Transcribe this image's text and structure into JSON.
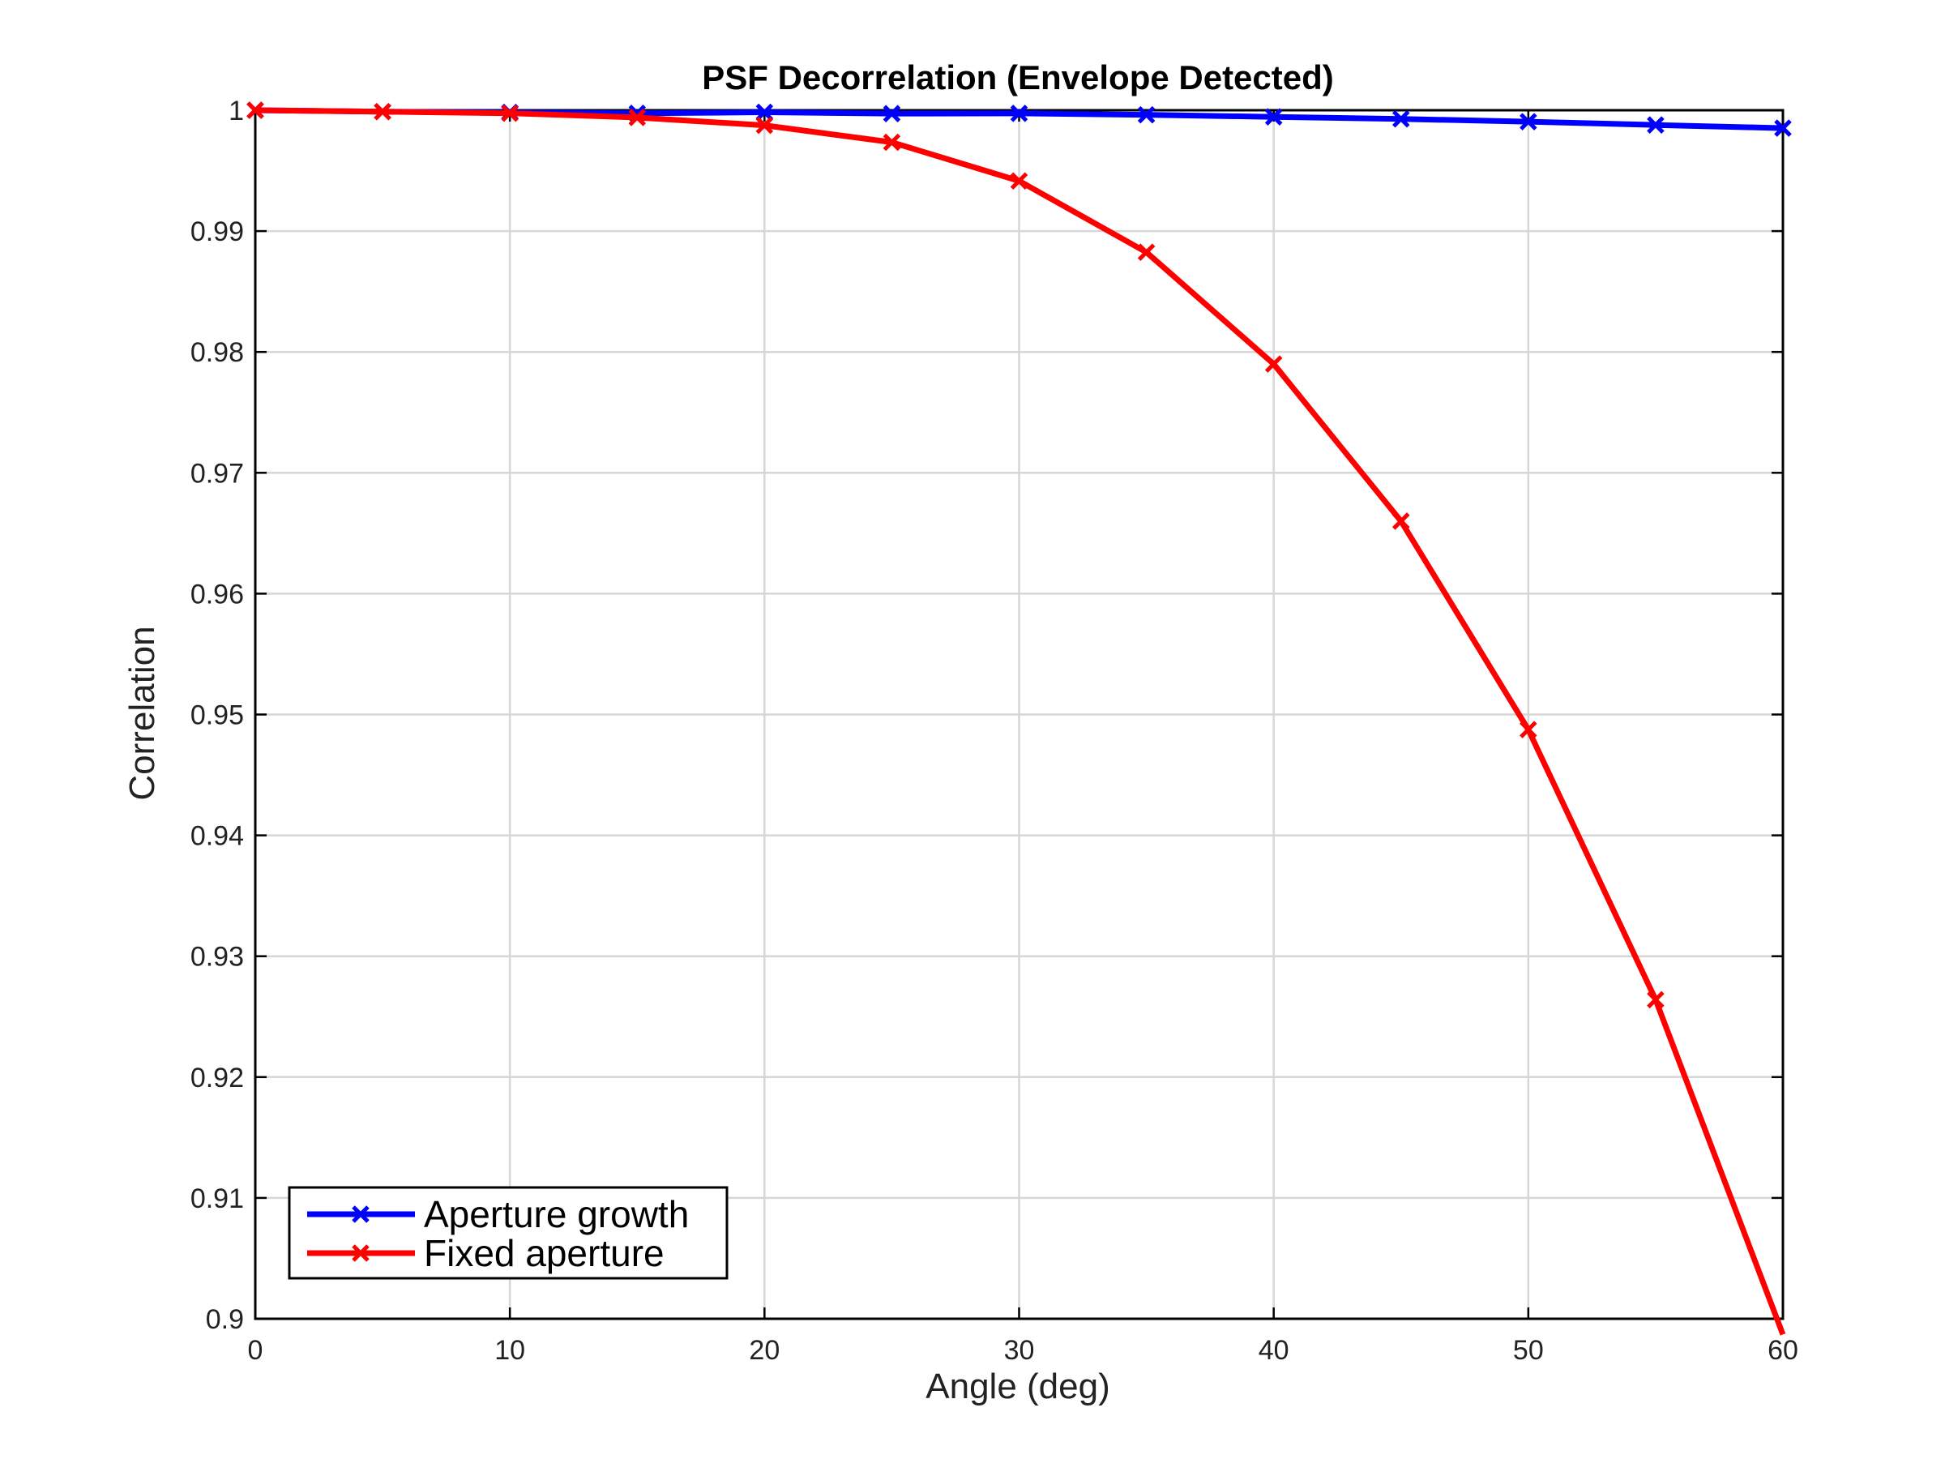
{
  "chart_data": {
    "type": "line",
    "title": "PSF Decorrelation (Envelope Detected)",
    "xlabel": "Angle (deg)",
    "ylabel": "Correlation",
    "xlim": [
      0,
      60
    ],
    "ylim": [
      0.9,
      1.0
    ],
    "x_ticks": [
      "0",
      "10",
      "20",
      "30",
      "40",
      "50",
      "60"
    ],
    "y_ticks": [
      "0.9",
      "0.91",
      "0.92",
      "0.93",
      "0.94",
      "0.95",
      "0.96",
      "0.97",
      "0.98",
      "0.99",
      "1"
    ],
    "grid": true,
    "legend_position": "bottom-left",
    "x": [
      0,
      5,
      10,
      15,
      20,
      25,
      30,
      35,
      40,
      45,
      50,
      55,
      60
    ],
    "series": [
      {
        "name": "Aperture growth",
        "color": "#0000ff",
        "marker": "x",
        "values": [
          1.0,
          0.99988,
          0.99982,
          0.99975,
          0.99983,
          0.99972,
          0.99974,
          0.99962,
          0.99945,
          0.99928,
          0.99905,
          0.99878,
          0.99852
        ]
      },
      {
        "name": "Fixed aperture",
        "color": "#ff0000",
        "marker": "x",
        "values": [
          1.0,
          0.99988,
          0.99975,
          0.9994,
          0.99875,
          0.99735,
          0.99415,
          0.98825,
          0.979,
          0.966,
          0.94875,
          0.9264,
          0.8987
        ]
      }
    ]
  }
}
